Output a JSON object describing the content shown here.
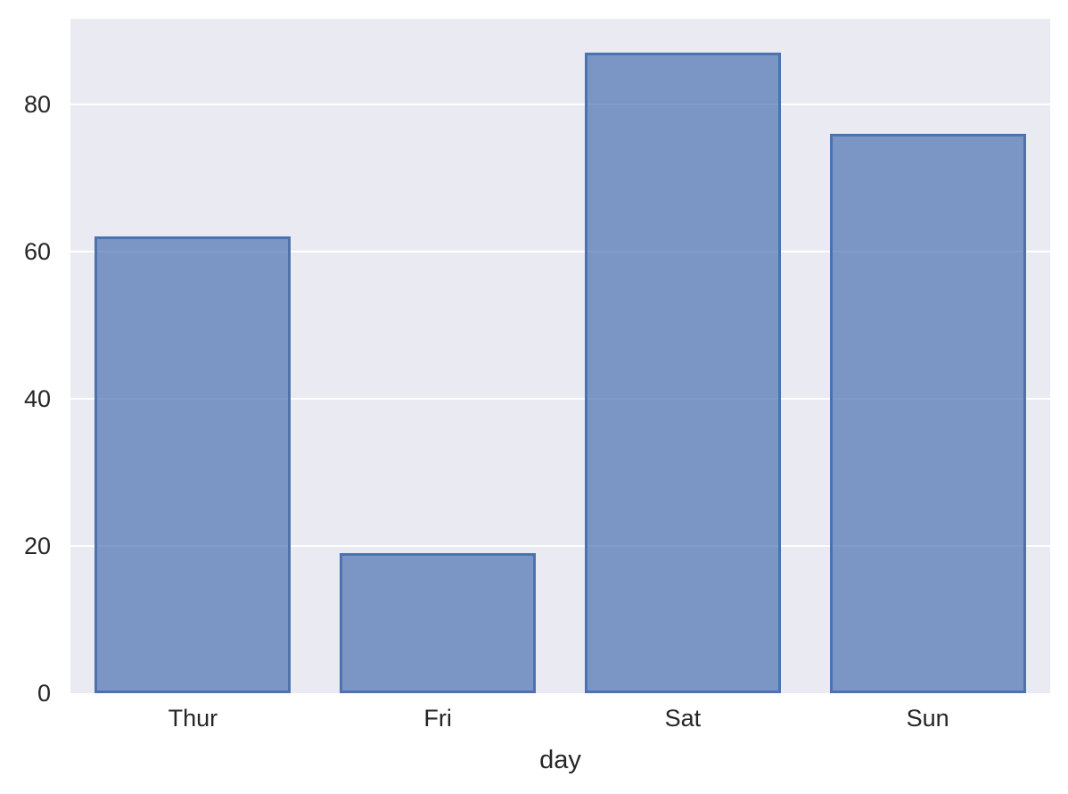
{
  "chart_data": {
    "type": "bar",
    "title": "",
    "xlabel": "day",
    "ylabel": "",
    "categories": [
      "Thur",
      "Fri",
      "Sat",
      "Sun"
    ],
    "values": [
      62,
      19,
      87,
      76
    ],
    "ylim": [
      0,
      91.6
    ],
    "yticks": [
      0,
      20,
      40,
      60,
      80
    ],
    "grid": true,
    "legend_position": "none",
    "bar_width_fraction": 0.8,
    "colors": {
      "figure_bg": "#ffffff",
      "axes_bg": "#eaeaf2",
      "grid": "#ffffff",
      "bar_fill": "rgba(76,114,176,0.7)",
      "bar_edge": "#4c72b0",
      "tick_label": "#262626"
    }
  }
}
